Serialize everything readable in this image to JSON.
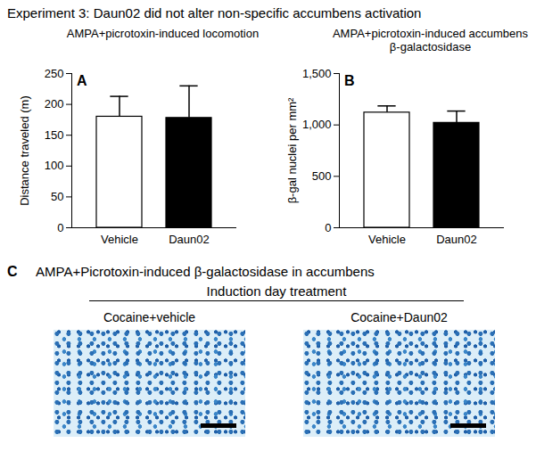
{
  "title": "Experiment 3: Daun02 did not alter non-specific accumbens activation",
  "chart_data": [
    {
      "type": "bar",
      "panel": "A",
      "title": "AMPA+picrotoxin-induced locomotion",
      "y_label": "Distance traveled (m)",
      "categories": [
        "Vehicle",
        "Daun02"
      ],
      "values": [
        180,
        178
      ],
      "errors": [
        33,
        52
      ],
      "colors": [
        "#ffffff",
        "#000000"
      ],
      "ylim": [
        0,
        250
      ],
      "yticks": [
        0,
        50,
        100,
        150,
        200,
        250
      ]
    },
    {
      "type": "bar",
      "panel": "B",
      "title": "AMPA+picrotoxin-induced accumbens β-galactosidase",
      "y_label": "β-gal nuclei per mm²",
      "categories": [
        "Vehicle",
        "Daun02"
      ],
      "values": [
        1120,
        1020
      ],
      "errors": [
        65,
        115
      ],
      "colors": [
        "#ffffff",
        "#000000"
      ],
      "ylim": [
        0,
        1500
      ],
      "yticks": [
        0,
        500,
        {
          "value": 1000,
          "label": "1,000"
        },
        {
          "value": 1500,
          "label": "1,500"
        }
      ]
    }
  ],
  "panel_c": {
    "panel": "C",
    "title": "AMPA+Picrotoxin-induced β-galactosidase in accumbens",
    "subtitle": "Induction day treatment",
    "images": [
      "Cocaine+vehicle",
      "Cocaine+Daun02"
    ]
  }
}
